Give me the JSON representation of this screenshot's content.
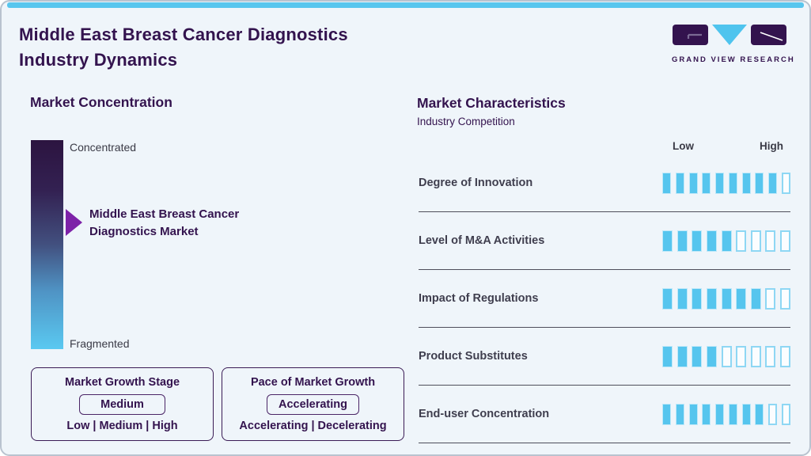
{
  "page": {
    "title_line1": "Middle East Breast Cancer Diagnostics",
    "title_line2": "Industry Dynamics"
  },
  "logo": {
    "name": "GRAND VIEW RESEARCH"
  },
  "colors": {
    "accent_blue": "#58c6ee",
    "brand_purple": "#33134e",
    "arrow_purple": "#7d22a8",
    "text_dark": "#3f3e4e",
    "gradient_top": "#2c1440",
    "gradient_bottom": "#5ac9f1"
  },
  "market_concentration": {
    "heading": "Market Concentration",
    "scale_top": "Concentrated",
    "scale_bottom": "Fragmented",
    "marker_label_line1": "Middle East Breast Cancer",
    "marker_label_line2": "Diagnostics Market",
    "marker_position_pct_from_top": 40
  },
  "growth_stage_box": {
    "title": "Market Growth Stage",
    "value": "Medium",
    "options": "Low | Medium | High"
  },
  "pace_box": {
    "title": "Pace of Market Growth",
    "value": "Accelerating",
    "options": "Accelerating | Decelerating"
  },
  "market_characteristics": {
    "heading": "Market Characteristics",
    "subheading": "Industry Competition",
    "scale_low": "Low",
    "scale_high": "High",
    "rows": [
      {
        "label": "Degree of Innovation",
        "filled": 9,
        "total": 10
      },
      {
        "label": "Level of M&A Activities",
        "filled": 5,
        "total": 9
      },
      {
        "label": "Impact of Regulations",
        "filled": 7,
        "total": 9
      },
      {
        "label": "Product Substitutes",
        "filled": 4,
        "total": 9
      },
      {
        "label": "End-user Concentration",
        "filled": 8,
        "total": 10
      }
    ]
  },
  "chart_data": {
    "type": "bar",
    "title": "Market Characteristics — Industry Competition",
    "orientation": "horizontal",
    "categories": [
      "Degree of Innovation",
      "Level of M&A Activities",
      "Impact of Regulations",
      "Product Substitutes",
      "End-user Concentration"
    ],
    "series": [
      {
        "name": "Rating (filled segments)",
        "values": [
          9,
          5,
          7,
          4,
          8
        ]
      }
    ],
    "segment_totals": [
      10,
      9,
      9,
      9,
      10
    ],
    "scale_labels": [
      "Low",
      "High"
    ],
    "legend_position": "none",
    "annotations": {
      "market_concentration_scale": [
        "Concentrated",
        "Fragmented"
      ],
      "market_concentration_marker": "Middle East Breast Cancer Diagnostics Market (~40% from Concentrated)",
      "market_growth_stage": "Medium",
      "pace_of_market_growth": "Accelerating"
    }
  }
}
